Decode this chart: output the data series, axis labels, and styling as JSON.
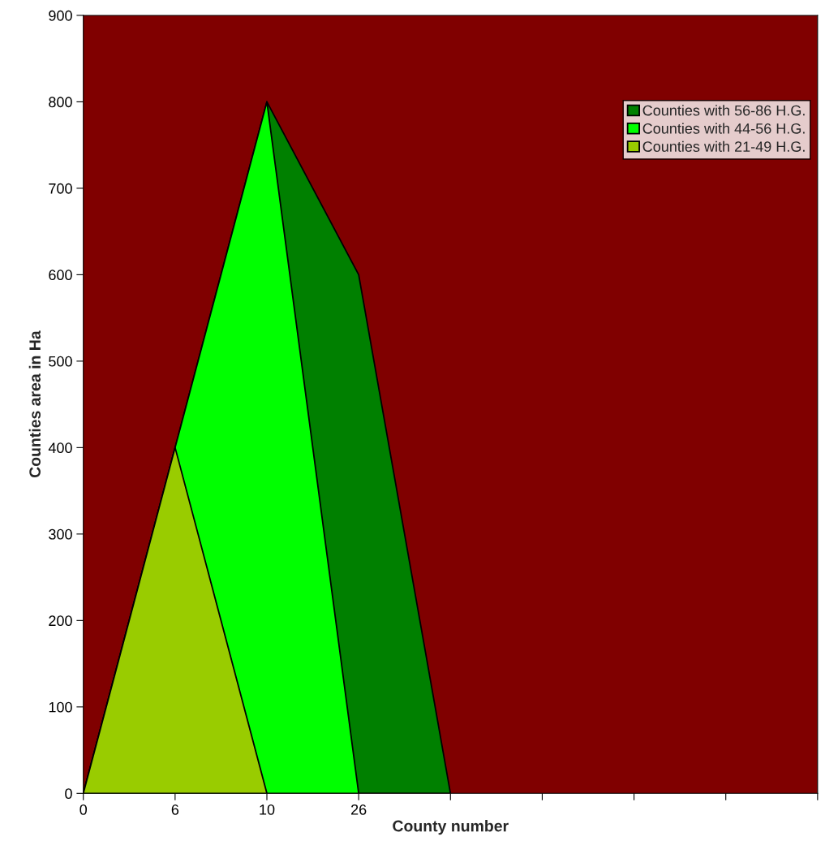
{
  "chart_data": {
    "type": "area",
    "xlabel": "County number",
    "ylabel": "Counties area in Ha",
    "categories": [
      "0",
      "6",
      "10",
      "26",
      null,
      null,
      null,
      null,
      null
    ],
    "series": [
      {
        "name": "Counties with 56-86 H.G.",
        "color": "#008000",
        "values": [
          0,
          400,
          800,
          600,
          0,
          null,
          null,
          null,
          null
        ]
      },
      {
        "name": "Counties with 44-56 H.G.",
        "color": "#00ff00",
        "values": [
          0,
          400,
          800,
          0,
          null,
          null,
          null,
          null,
          null
        ]
      },
      {
        "name": "Counties with 21-49 H.G.",
        "color": "#99cc00",
        "values": [
          0,
          400,
          0,
          null,
          null,
          null,
          null,
          null,
          null
        ]
      }
    ],
    "ylim": [
      0,
      900
    ],
    "yticks": [
      0,
      100,
      200,
      300,
      400,
      500,
      600,
      700,
      800,
      900
    ],
    "grid": false,
    "legend": "top right"
  }
}
